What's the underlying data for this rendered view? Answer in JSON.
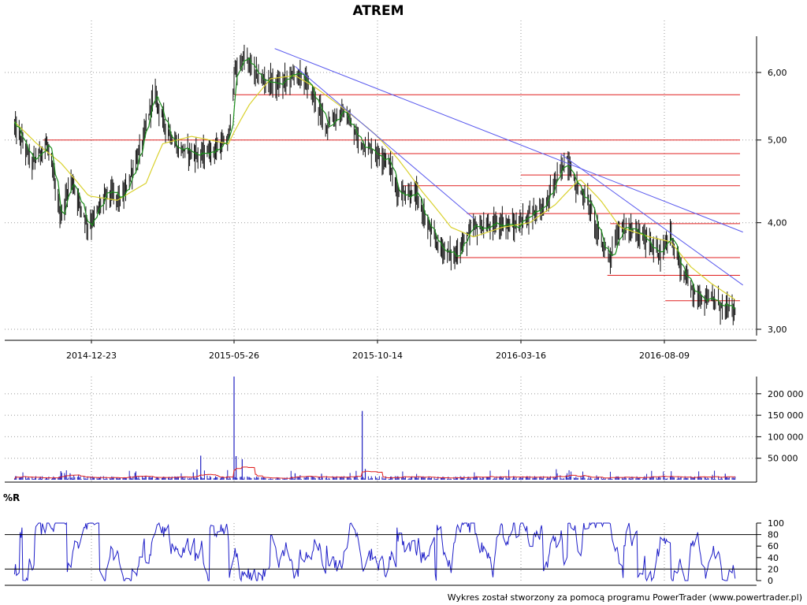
{
  "chart_data": {
    "type": "line",
    "title": "ATREM",
    "footer": "Wykres został stworzony za pomocą programu PowerTrader (www.powertrader.pl)",
    "x_dates": [
      "2014-12-23",
      "2015-05-26",
      "2015-10-14",
      "2016-03-16",
      "2016-08-09"
    ],
    "price": {
      "scale": "log",
      "ylim": [
        2.9,
        6.5
      ],
      "ticks": [
        3.0,
        4.0,
        5.0,
        6.0
      ],
      "tick_labels": [
        "3,00",
        "4,00",
        "5,00",
        "6,00"
      ],
      "anchors": [
        [
          "2014-10-01",
          5.2
        ],
        [
          "2014-10-20",
          4.7
        ],
        [
          "2014-11-05",
          4.95
        ],
        [
          "2014-11-20",
          4.05
        ],
        [
          "2014-12-01",
          4.5
        ],
        [
          "2014-12-20",
          3.95
        ],
        [
          "2015-01-10",
          4.35
        ],
        [
          "2015-01-25",
          4.25
        ],
        [
          "2015-02-15",
          4.9
        ],
        [
          "2015-03-01",
          5.7
        ],
        [
          "2015-03-10",
          5.3
        ],
        [
          "2015-03-25",
          4.9
        ],
        [
          "2015-04-20",
          4.8
        ],
        [
          "2015-05-10",
          4.9
        ],
        [
          "2015-05-20",
          5.0
        ],
        [
          "2015-05-27",
          6.0
        ],
        [
          "2015-06-05",
          6.25
        ],
        [
          "2015-06-20",
          5.9
        ],
        [
          "2015-07-10",
          5.8
        ],
        [
          "2015-07-25",
          6.0
        ],
        [
          "2015-08-05",
          5.85
        ],
        [
          "2015-08-25",
          5.2
        ],
        [
          "2015-09-10",
          5.4
        ],
        [
          "2015-09-25",
          5.0
        ],
        [
          "2015-10-10",
          4.85
        ],
        [
          "2015-10-25",
          4.75
        ],
        [
          "2015-11-05",
          4.35
        ],
        [
          "2015-11-25",
          4.3
        ],
        [
          "2015-12-10",
          3.9
        ],
        [
          "2015-12-20",
          3.75
        ],
        [
          "2016-01-05",
          3.65
        ],
        [
          "2016-01-25",
          3.95
        ],
        [
          "2016-02-10",
          3.95
        ],
        [
          "2016-02-25",
          4.0
        ],
        [
          "2016-03-10",
          3.95
        ],
        [
          "2016-03-25",
          4.1
        ],
        [
          "2016-04-10",
          4.2
        ],
        [
          "2016-04-25",
          4.6
        ],
        [
          "2016-05-02",
          4.75
        ],
        [
          "2016-05-10",
          4.45
        ],
        [
          "2016-05-25",
          4.2
        ],
        [
          "2016-06-05",
          3.8
        ],
        [
          "2016-06-15",
          3.65
        ],
        [
          "2016-06-25",
          3.95
        ],
        [
          "2016-07-10",
          3.9
        ],
        [
          "2016-07-25",
          3.8
        ],
        [
          "2016-08-05",
          3.65
        ],
        [
          "2016-08-15",
          3.9
        ],
        [
          "2016-08-25",
          3.55
        ],
        [
          "2016-09-10",
          3.3
        ],
        [
          "2016-09-25",
          3.25
        ],
        [
          "2016-10-05",
          3.2
        ],
        [
          "2016-10-20",
          3.15
        ]
      ],
      "moving_average_anchors": [
        [
          "2014-10-01",
          5.25
        ],
        [
          "2014-10-25",
          4.95
        ],
        [
          "2014-11-20",
          4.7
        ],
        [
          "2014-12-20",
          4.3
        ],
        [
          "2015-01-20",
          4.25
        ],
        [
          "2015-02-20",
          4.45
        ],
        [
          "2015-03-10",
          4.95
        ],
        [
          "2015-04-10",
          5.05
        ],
        [
          "2015-05-20",
          4.95
        ],
        [
          "2015-06-10",
          5.5
        ],
        [
          "2015-07-01",
          5.9
        ],
        [
          "2015-07-25",
          5.95
        ],
        [
          "2015-08-15",
          5.75
        ],
        [
          "2015-09-10",
          5.45
        ],
        [
          "2015-10-10",
          5.1
        ],
        [
          "2015-11-05",
          4.75
        ],
        [
          "2015-12-01",
          4.35
        ],
        [
          "2016-01-01",
          3.95
        ],
        [
          "2016-01-25",
          3.85
        ],
        [
          "2016-02-25",
          3.95
        ],
        [
          "2016-03-25",
          4.0
        ],
        [
          "2016-04-20",
          4.2
        ],
        [
          "2016-05-15",
          4.5
        ],
        [
          "2016-06-05",
          4.25
        ],
        [
          "2016-06-25",
          3.95
        ],
        [
          "2016-07-25",
          3.85
        ],
        [
          "2016-08-15",
          3.8
        ],
        [
          "2016-09-05",
          3.55
        ],
        [
          "2016-09-25",
          3.4
        ],
        [
          "2016-10-20",
          3.25
        ]
      ],
      "horizontal_levels": [
        {
          "y": 5.65,
          "from": "2015-05-26",
          "to": "2016-10-25"
        },
        {
          "y": 5.0,
          "from": "2014-11-01",
          "to": "2016-10-25"
        },
        {
          "y": 4.82,
          "from": "2015-10-14",
          "to": "2016-10-25"
        },
        {
          "y": 4.55,
          "from": "2016-03-16",
          "to": "2016-10-25"
        },
        {
          "y": 4.42,
          "from": "2015-11-10",
          "to": "2016-10-25"
        },
        {
          "y": 4.1,
          "from": "2016-01-18",
          "to": "2016-10-25"
        },
        {
          "y": 3.99,
          "from": "2016-06-15",
          "to": "2016-10-25"
        },
        {
          "y": 3.64,
          "from": "2016-01-05",
          "to": "2016-10-25"
        },
        {
          "y": 3.47,
          "from": "2016-06-12",
          "to": "2016-10-25"
        },
        {
          "y": 3.24,
          "from": "2016-08-10",
          "to": "2016-10-25"
        }
      ],
      "trend_lines": [
        {
          "from": [
            "2015-07-05",
            6.4
          ],
          "to": [
            "2016-10-28",
            3.9
          ]
        },
        {
          "from": [
            "2015-07-25",
            6.1
          ],
          "to": [
            "2016-01-25",
            4.05
          ]
        },
        {
          "from": [
            "2016-04-25",
            4.82
          ],
          "to": [
            "2016-10-28",
            3.38
          ]
        }
      ]
    },
    "volume": {
      "ticks": [
        50000,
        100000,
        150000,
        200000
      ],
      "tick_labels": [
        "50 000",
        "100 000",
        "150 000",
        "200 000"
      ],
      "ylim": [
        0,
        240000
      ],
      "spikes": [
        [
          "2015-05-26",
          240000
        ],
        [
          "2015-09-29",
          160000
        ],
        [
          "2014-11-20",
          20000
        ],
        [
          "2014-11-30",
          15000
        ],
        [
          "2015-02-08",
          16000
        ],
        [
          "2015-04-12",
          17000
        ],
        [
          "2015-04-16",
          24000
        ],
        [
          "2015-04-20",
          56000
        ],
        [
          "2015-05-28",
          55000
        ],
        [
          "2015-06-03",
          48000
        ],
        [
          "2015-07-25",
          15000
        ],
        [
          "2015-08-20",
          14000
        ],
        [
          "2015-10-02",
          25000
        ],
        [
          "2016-05-01",
          10000
        ],
        [
          "2016-10-10",
          14000
        ]
      ],
      "base": 4500
    },
    "williams_r": {
      "label": "%R",
      "ticks": [
        0,
        20,
        40,
        60,
        80,
        100
      ],
      "tick_labels": [
        "0",
        "20",
        "40",
        "60",
        "80",
        "100"
      ],
      "ylim": [
        0,
        100
      ],
      "levels": [
        20,
        80
      ]
    }
  }
}
